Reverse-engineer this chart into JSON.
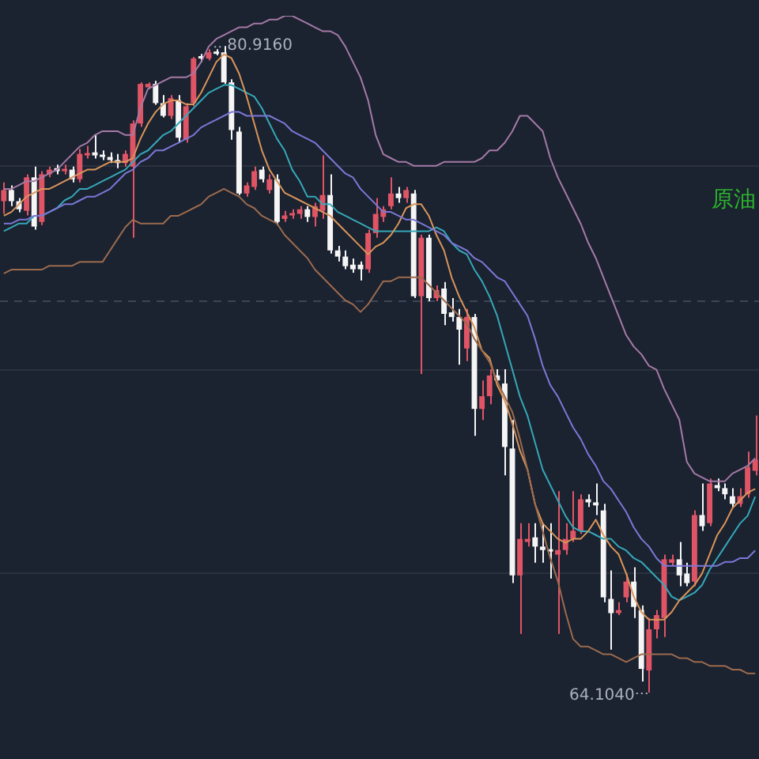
{
  "chart_data": {
    "type": "candlestick",
    "grid": "y",
    "legend": false,
    "categories": [
      null,
      null,
      null,
      null,
      null,
      null,
      null,
      null,
      null,
      null,
      null,
      null,
      null,
      null,
      null,
      null,
      null,
      null,
      null,
      null,
      null,
      null,
      null,
      null,
      null,
      null,
      null,
      null,
      null,
      null,
      null,
      null,
      null,
      null,
      null,
      null,
      null,
      null,
      null,
      null,
      null,
      null,
      null,
      null,
      null,
      null,
      null,
      null,
      null,
      null,
      null,
      null,
      null,
      null,
      null,
      null,
      null,
      null,
      null,
      null,
      null,
      null,
      null,
      null,
      null,
      null,
      null,
      null,
      null,
      null,
      null,
      null,
      null,
      null,
      null,
      null,
      null,
      null,
      null,
      null,
      null,
      null,
      null,
      null,
      null,
      null,
      null,
      null,
      null,
      null,
      null,
      null,
      null,
      null,
      null,
      null,
      null,
      null,
      null,
      null
    ],
    "ohlc": [
      [
        76.88,
        77.37,
        76.55,
        77.17
      ],
      [
        77.17,
        77.29,
        76.75,
        76.88
      ],
      [
        76.88,
        76.96,
        76.59,
        76.67
      ],
      [
        76.63,
        77.58,
        76.51,
        77.5
      ],
      [
        77.5,
        77.78,
        76.14,
        76.22
      ],
      [
        76.34,
        77.66,
        76.26,
        77.58
      ],
      [
        77.58,
        77.78,
        77.5,
        77.7
      ],
      [
        77.74,
        77.83,
        77.58,
        77.66
      ],
      [
        77.66,
        77.83,
        77.58,
        77.7
      ],
      [
        77.7,
        77.78,
        77.37,
        77.45
      ],
      [
        77.45,
        78.24,
        77.37,
        78.11
      ],
      [
        78.07,
        78.32,
        77.99,
        78.11
      ],
      [
        78.15,
        78.61,
        77.99,
        78.07
      ],
      [
        78.07,
        78.2,
        77.95,
        78.03
      ],
      [
        78.03,
        78.15,
        77.87,
        77.95
      ],
      [
        77.95,
        78.11,
        77.74,
        77.87
      ],
      [
        77.87,
        78.2,
        77.78,
        78.11
      ],
      [
        77.78,
        78.98,
        75.93,
        78.9
      ],
      [
        78.9,
        79.97,
        78.81,
        79.93
      ],
      [
        79.84,
        79.97,
        79.8,
        79.93
      ],
      [
        79.93,
        80.01,
        79.39,
        79.43
      ],
      [
        79.43,
        79.64,
        79.06,
        79.1
      ],
      [
        79.1,
        79.64,
        79.02,
        79.56
      ],
      [
        79.51,
        79.64,
        78.4,
        78.53
      ],
      [
        78.48,
        79.43,
        78.4,
        79.35
      ],
      [
        79.43,
        80.63,
        79.35,
        80.59
      ],
      [
        80.63,
        80.71,
        80.5,
        80.59
      ],
      [
        80.59,
        80.83,
        80.54,
        80.75
      ],
      [
        80.75,
        80.83,
        80.67,
        80.71
      ],
      [
        80.75,
        80.916,
        79.93,
        79.97
      ],
      [
        79.97,
        80.05,
        78.48,
        78.73
      ],
      [
        78.69,
        78.81,
        77.04,
        77.08
      ],
      [
        77.08,
        77.37,
        77.0,
        77.29
      ],
      [
        77.25,
        77.78,
        77.17,
        77.66
      ],
      [
        77.7,
        77.78,
        77.37,
        77.45
      ],
      [
        77.17,
        77.58,
        77.08,
        77.45
      ],
      [
        77.45,
        77.58,
        76.26,
        76.34
      ],
      [
        76.42,
        76.63,
        76.34,
        76.51
      ],
      [
        76.51,
        76.67,
        76.42,
        76.55
      ],
      [
        76.55,
        76.75,
        76.42,
        76.67
      ],
      [
        76.67,
        76.75,
        76.34,
        76.47
      ],
      [
        76.47,
        76.84,
        76.22,
        76.75
      ],
      [
        76.63,
        78.07,
        76.42,
        77.04
      ],
      [
        77.04,
        77.58,
        75.52,
        75.6
      ],
      [
        75.6,
        75.72,
        75.31,
        75.44
      ],
      [
        75.44,
        75.6,
        75.11,
        75.19
      ],
      [
        75.23,
        75.39,
        75.02,
        75.11
      ],
      [
        75.23,
        75.31,
        74.82,
        75.11
      ],
      [
        75.11,
        76.14,
        75.02,
        76.05
      ],
      [
        76.05,
        76.96,
        75.93,
        76.55
      ],
      [
        76.47,
        76.75,
        76.34,
        76.67
      ],
      [
        76.75,
        77.5,
        76.67,
        77.08
      ],
      [
        77.08,
        77.25,
        76.84,
        76.96
      ],
      [
        76.96,
        77.25,
        76.84,
        77.17
      ],
      [
        77.08,
        77.17,
        74.36,
        74.41
      ],
      [
        74.41,
        76.01,
        72.39,
        75.93
      ],
      [
        75.93,
        76.01,
        74.28,
        74.36
      ],
      [
        74.36,
        74.69,
        74.28,
        74.57
      ],
      [
        74.61,
        74.78,
        73.66,
        73.95
      ],
      [
        73.99,
        74.36,
        73.75,
        73.87
      ],
      [
        73.87,
        74.08,
        72.63,
        73.54
      ],
      [
        73.05,
        74.08,
        72.72,
        73.87
      ],
      [
        73.87,
        73.95,
        70.78,
        71.48
      ],
      [
        71.48,
        72.22,
        71.19,
        71.81
      ],
      [
        71.81,
        72.51,
        71.6,
        72.35
      ],
      [
        72.35,
        72.51,
        72.14,
        72.22
      ],
      [
        72.14,
        72.51,
        69.75,
        70.49
      ],
      [
        70.45,
        71.19,
        66.95,
        67.15
      ],
      [
        67.15,
        68.51,
        65.63,
        68.1
      ],
      [
        68.02,
        68.51,
        67.9,
        68.1
      ],
      [
        68.14,
        68.51,
        67.48,
        67.9
      ],
      [
        67.9,
        68.51,
        67.48,
        67.81
      ],
      [
        67.81,
        68.51,
        67.07,
        67.77
      ],
      [
        67.69,
        69.34,
        65.63,
        67.81
      ],
      [
        67.81,
        68.51,
        67.69,
        68.1
      ],
      [
        68.1,
        69.34,
        68.02,
        68.31
      ],
      [
        68.31,
        69.26,
        68.23,
        69.13
      ],
      [
        69.13,
        69.26,
        68.93,
        69.05
      ],
      [
        69.05,
        69.54,
        68.72,
        68.97
      ],
      [
        68.84,
        69.01,
        66.45,
        66.58
      ],
      [
        66.54,
        67.28,
        65.22,
        66.17
      ],
      [
        66.17,
        66.45,
        66.12,
        66.25
      ],
      [
        66.58,
        67.2,
        66.45,
        66.99
      ],
      [
        66.99,
        67.36,
        66.04,
        66.33
      ],
      [
        66.25,
        66.37,
        64.39,
        64.72
      ],
      [
        64.68,
        66.04,
        64.104,
        65.75
      ],
      [
        65.75,
        66.25,
        65.51,
        66.12
      ],
      [
        66.04,
        67.69,
        65.55,
        67.57
      ],
      [
        67.48,
        67.69,
        67.4,
        67.57
      ],
      [
        67.57,
        68.02,
        66.87,
        67.15
      ],
      [
        67.2,
        67.48,
        66.87,
        66.95
      ],
      [
        66.99,
        68.84,
        66.87,
        68.72
      ],
      [
        68.72,
        69.54,
        68.31,
        68.43
      ],
      [
        68.51,
        69.67,
        68.43,
        69.54
      ],
      [
        69.5,
        69.67,
        69.34,
        69.42
      ],
      [
        69.42,
        69.54,
        69.13,
        69.26
      ],
      [
        69.21,
        69.42,
        68.93,
        69.01
      ],
      [
        69.01,
        69.42,
        68.93,
        69.21
      ],
      [
        69.26,
        70.37,
        69.17,
        69.96
      ],
      [
        69.87,
        71.31,
        69.75,
        70.16
      ]
    ],
    "colors": [
      "#e05566",
      "#f5f5f5",
      "#f5f5f5",
      "#e05566",
      "#f5f5f5",
      "#e05566",
      "#e05566",
      "#f5f5f5",
      "#e05566",
      "#f5f5f5",
      "#e05566",
      "#e05566",
      "#f5f5f5",
      "#f5f5f5",
      "#f5f5f5",
      "#f5f5f5",
      "#e05566",
      "#e05566",
      "#e05566",
      "#e05566",
      "#f5f5f5",
      "#f5f5f5",
      "#e05566",
      "#f5f5f5",
      "#e05566",
      "#e05566",
      "#f5f5f5",
      "#e05566",
      "#f5f5f5",
      "#f5f5f5",
      "#f5f5f5",
      "#f5f5f5",
      "#e05566",
      "#e05566",
      "#f5f5f5",
      "#e05566",
      "#f5f5f5",
      "#e05566",
      "#e05566",
      "#e05566",
      "#f5f5f5",
      "#e05566",
      "#e05566",
      "#f5f5f5",
      "#f5f5f5",
      "#f5f5f5",
      "#f5f5f5",
      "#f5f5f5",
      "#e05566",
      "#e05566",
      "#e05566",
      "#e05566",
      "#f5f5f5",
      "#e05566",
      "#f5f5f5",
      "#e05566",
      "#f5f5f5",
      "#e05566",
      "#f5f5f5",
      "#f5f5f5",
      "#f5f5f5",
      "#e05566",
      "#f5f5f5",
      "#e05566",
      "#e05566",
      "#f5f5f5",
      "#f5f5f5",
      "#f5f5f5",
      "#e05566",
      "#e05566",
      "#f5f5f5",
      "#f5f5f5",
      "#f5f5f5",
      "#e05566",
      "#e05566",
      "#e05566",
      "#e05566",
      "#f5f5f5",
      "#f5f5f5",
      "#f5f5f5",
      "#f5f5f5",
      "#e05566",
      "#e05566",
      "#f5f5f5",
      "#f5f5f5",
      "#e05566",
      "#e05566",
      "#e05566",
      "#e05566",
      "#f5f5f5",
      "#f5f5f5",
      "#e05566",
      "#f5f5f5",
      "#e05566",
      "#f5f5f5",
      "#f5f5f5",
      "#f5f5f5",
      "#e05566",
      "#e05566",
      "#e05566"
    ],
    "series": [
      {
        "type": "line",
        "color": "#a57aa6",
        "values": [
          77.2,
          77.2,
          77.3,
          77.4,
          77.4,
          77.5,
          77.6,
          77.7,
          77.9,
          78.1,
          78.3,
          78.4,
          78.6,
          78.7,
          78.7,
          78.7,
          78.6,
          78.6,
          79.3,
          79.8,
          79.9,
          80.0,
          80.1,
          80.1,
          80.1,
          80.2,
          80.5,
          80.9,
          81.1,
          81.2,
          81.3,
          81.4,
          81.4,
          81.5,
          81.5,
          81.6,
          81.6,
          81.7,
          81.7,
          81.6,
          81.5,
          81.4,
          81.3,
          81.3,
          81.2,
          80.9,
          80.5,
          80.1,
          79.5,
          78.6,
          78.1,
          78.0,
          77.9,
          77.9,
          77.8,
          77.8,
          77.8,
          77.8,
          77.9,
          77.9,
          77.9,
          77.9,
          77.9,
          78.0,
          78.2,
          78.2,
          78.4,
          78.7,
          79.1,
          79.1,
          78.9,
          78.7,
          78.0,
          77.5,
          77.1,
          76.7,
          76.3,
          75.8,
          75.4,
          74.9,
          74.4,
          73.9,
          73.4,
          73.1,
          72.9,
          72.6,
          72.5,
          72.0,
          71.6,
          71.2,
          70.1,
          69.8,
          69.7,
          69.6,
          69.6,
          69.6,
          69.8,
          69.9,
          70.0,
          70.2
        ]
      },
      {
        "type": "line",
        "color": "#7b78d6",
        "values": [
          76.3,
          76.3,
          76.4,
          76.4,
          76.5,
          76.5,
          76.6,
          76.7,
          76.8,
          76.8,
          76.9,
          77.0,
          77.0,
          77.1,
          77.2,
          77.4,
          77.6,
          77.7,
          77.9,
          78.0,
          78.2,
          78.2,
          78.3,
          78.4,
          78.5,
          78.6,
          78.8,
          78.9,
          79.0,
          79.1,
          79.2,
          79.2,
          79.1,
          79.1,
          79.1,
          79.1,
          79.0,
          78.9,
          78.7,
          78.6,
          78.5,
          78.4,
          78.2,
          78.0,
          77.8,
          77.6,
          77.5,
          77.2,
          77.0,
          76.8,
          76.6,
          76.6,
          76.5,
          76.4,
          76.4,
          76.3,
          76.2,
          76.1,
          76.0,
          75.8,
          75.7,
          75.6,
          75.4,
          75.3,
          75.1,
          74.9,
          74.8,
          74.5,
          74.2,
          73.9,
          73.3,
          72.6,
          72.1,
          71.8,
          71.4,
          71.0,
          70.7,
          70.3,
          70.0,
          69.6,
          69.4,
          69.1,
          68.8,
          68.4,
          68.1,
          67.9,
          67.6,
          67.4,
          67.4,
          67.4,
          67.4,
          67.4,
          67.4,
          67.4,
          67.4,
          67.5,
          67.5,
          67.6,
          67.6,
          67.8
        ]
      },
      {
        "type": "line",
        "color": "#9c6b4e",
        "values": [
          75.0,
          75.1,
          75.1,
          75.1,
          75.1,
          75.1,
          75.2,
          75.2,
          75.2,
          75.2,
          75.3,
          75.3,
          75.3,
          75.3,
          75.6,
          75.9,
          76.2,
          76.4,
          76.3,
          76.3,
          76.3,
          76.3,
          76.5,
          76.5,
          76.6,
          76.7,
          76.8,
          77.0,
          77.1,
          77.2,
          77.1,
          77.0,
          76.8,
          76.7,
          76.5,
          76.4,
          76.3,
          76.0,
          75.8,
          75.6,
          75.4,
          75.1,
          74.9,
          74.7,
          74.5,
          74.3,
          74.2,
          74.0,
          74.2,
          74.5,
          74.8,
          74.8,
          74.9,
          74.9,
          74.9,
          74.9,
          74.7,
          74.5,
          74.3,
          74.1,
          73.9,
          73.7,
          73.3,
          73.0,
          72.7,
          72.2,
          71.8,
          71.4,
          70.7,
          69.9,
          69.0,
          68.3,
          67.6,
          67.0,
          66.2,
          65.5,
          65.3,
          65.3,
          65.2,
          65.1,
          65.1,
          65.0,
          64.9,
          65.0,
          65.1,
          65.1,
          65.1,
          65.1,
          65.1,
          65.0,
          65.0,
          64.9,
          64.9,
          64.8,
          64.8,
          64.8,
          64.7,
          64.7,
          64.6,
          64.6
        ]
      },
      {
        "type": "line",
        "color": "#d9955a",
        "values": [
          76.5,
          76.6,
          76.8,
          77.0,
          77.1,
          77.2,
          77.2,
          77.3,
          77.4,
          77.5,
          77.6,
          77.7,
          77.7,
          77.8,
          77.9,
          77.9,
          77.9,
          78.0,
          78.5,
          78.9,
          79.2,
          79.4,
          79.5,
          79.5,
          79.4,
          79.4,
          79.7,
          80.1,
          80.5,
          80.7,
          80.6,
          80.2,
          79.6,
          78.9,
          78.2,
          77.7,
          77.4,
          77.1,
          77.0,
          76.9,
          76.8,
          76.7,
          76.6,
          76.5,
          76.3,
          76.1,
          75.9,
          75.7,
          75.5,
          75.7,
          75.8,
          76.0,
          76.3,
          76.7,
          76.8,
          76.8,
          76.5,
          76.0,
          75.6,
          74.9,
          74.4,
          74.0,
          73.6,
          73.0,
          72.8,
          72.1,
          71.7,
          71.1,
          70.4,
          69.9,
          69.0,
          68.5,
          68.3,
          68.1,
          68.0,
          68.1,
          68.1,
          68.3,
          68.6,
          68.2,
          67.9,
          67.7,
          67.2,
          66.6,
          66.2,
          66.0,
          66.0,
          66.0,
          66.2,
          66.5,
          66.7,
          66.9,
          67.2,
          67.7,
          68.2,
          68.5,
          68.9,
          69.1,
          69.3,
          69.4
        ]
      },
      {
        "type": "line",
        "color": "#35a8b8",
        "values": [
          76.1,
          76.2,
          76.3,
          76.3,
          76.5,
          76.5,
          76.6,
          76.7,
          76.9,
          77.0,
          77.2,
          77.2,
          77.3,
          77.4,
          77.5,
          77.6,
          77.7,
          77.9,
          78.1,
          78.2,
          78.4,
          78.6,
          78.7,
          78.9,
          79.1,
          79.3,
          79.5,
          79.7,
          79.8,
          79.9,
          79.9,
          79.8,
          79.7,
          79.6,
          79.3,
          78.9,
          78.5,
          78.2,
          77.7,
          77.4,
          77.0,
          77.0,
          76.8,
          76.8,
          76.6,
          76.5,
          76.4,
          76.3,
          76.2,
          76.1,
          76.1,
          76.1,
          76.1,
          76.1,
          76.1,
          76.1,
          76.1,
          76.2,
          76.1,
          75.8,
          75.6,
          75.5,
          75.1,
          74.8,
          74.4,
          73.9,
          73.2,
          72.5,
          71.8,
          71.3,
          70.6,
          69.9,
          69.5,
          69.1,
          68.7,
          68.4,
          68.3,
          68.3,
          68.2,
          68.1,
          68.1,
          67.9,
          67.8,
          67.6,
          67.5,
          67.3,
          67.1,
          66.9,
          66.6,
          66.5,
          66.6,
          66.7,
          66.9,
          67.3,
          67.6,
          67.9,
          68.2,
          68.5,
          68.7,
          69.2
        ]
      }
    ],
    "yticks": [
      {
        "value": 77.8,
        "label": null
      },
      {
        "value": 72.5,
        "label": null
      },
      {
        "value": 67.2,
        "label": null
      }
    ],
    "ref_lines": [
      {
        "axis": "y",
        "value": 74.3,
        "color": "#3a4656",
        "line_style": "dashed"
      }
    ],
    "annotations": [
      "80.9160",
      "64.1040",
      "原油"
    ]
  }
}
